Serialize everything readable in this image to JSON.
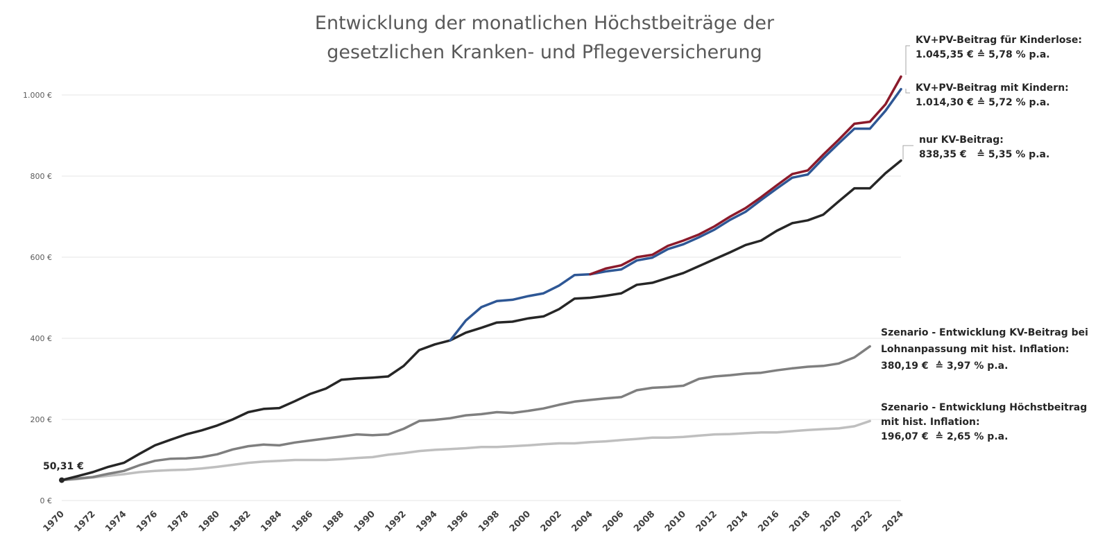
{
  "chart_data": {
    "type": "line",
    "title": "Entwicklung der monatlichen Höchstbeiträge der gesetzlichen Kranken- und Pflegeversicherung",
    "title_lines": [
      "Entwicklung der monatlichen Höchstbeiträge der",
      "gesetzlichen Kranken- und Pflegeversicherung"
    ],
    "xlabel": "",
    "ylabel": "",
    "ylim": [
      0,
      1000
    ],
    "yticks": [
      0,
      200,
      400,
      600,
      800,
      1000
    ],
    "ytick_labels": [
      "0 €",
      "200 €",
      "400 €",
      "600 €",
      "800 €",
      "1.000 €"
    ],
    "x_range": [
      1970,
      2024
    ],
    "xticks": [
      1970,
      1972,
      1974,
      1976,
      1978,
      1980,
      1982,
      1984,
      1986,
      1988,
      1990,
      1992,
      1994,
      1996,
      1998,
      2000,
      2002,
      2004,
      2006,
      2008,
      2010,
      2012,
      2014,
      2016,
      2018,
      2020,
      2022,
      2024
    ],
    "xtick_labels": [
      "1970",
      "1972",
      "1974",
      "1976",
      "1978",
      "1980",
      "1982",
      "1984",
      "1986",
      "1988",
      "1990",
      "1992",
      "1994",
      "1996",
      "1998",
      "2000",
      "2002",
      "2004",
      "2006",
      "2008",
      "2010",
      "2012",
      "2014",
      "2016",
      "2018",
      "2020",
      "2022",
      "2024"
    ],
    "grid": true,
    "start_label": "50,31 €",
    "series": [
      {
        "name": "KV+PV-Beitrag für Kinderlose",
        "color": "#8b1a2b",
        "annotation": [
          "KV+PV-Beitrag für Kinderlose:",
          "1.045,35 € ≙ 5,78 % p.a."
        ],
        "x": [
          2004,
          2005,
          2006,
          2007,
          2008,
          2009,
          2010,
          2011,
          2012,
          2013,
          2014,
          2015,
          2016,
          2017,
          2018,
          2019,
          2020,
          2021,
          2022,
          2023,
          2024
        ],
        "values": [
          558,
          572,
          580,
          600,
          606,
          628,
          641,
          656,
          676,
          700,
          721,
          748,
          777,
          805,
          814,
          853,
          890,
          929,
          934,
          977,
          1045.35
        ]
      },
      {
        "name": "KV+PV-Beitrag mit Kindern",
        "color": "#2e5795",
        "annotation": [
          "KV+PV-Beitrag mit Kindern:",
          "1.014,30 € ≙ 5,72 % p.a."
        ],
        "x": [
          1995,
          1996,
          1997,
          1998,
          1999,
          2000,
          2001,
          2002,
          2003,
          2004,
          2005,
          2006,
          2007,
          2008,
          2009,
          2010,
          2011,
          2012,
          2013,
          2014,
          2015,
          2016,
          2017,
          2018,
          2019,
          2020,
          2021,
          2022,
          2023,
          2024
        ],
        "values": [
          395,
          444,
          477,
          492,
          495,
          504,
          511,
          530,
          556,
          558,
          565,
          570,
          592,
          599,
          620,
          632,
          649,
          668,
          692,
          712,
          741,
          769,
          796,
          804,
          844,
          881,
          917,
          917,
          961,
          1014.3
        ]
      },
      {
        "name": "nur KV-Beitrag",
        "color": "#262626",
        "annotation": [
          "nur KV-Beitrag:",
          "838,35 €   ≙ 5,35 % p.a."
        ],
        "x": [
          1970,
          1971,
          1972,
          1973,
          1974,
          1975,
          1976,
          1977,
          1978,
          1979,
          1980,
          1981,
          1982,
          1983,
          1984,
          1985,
          1986,
          1987,
          1988,
          1989,
          1990,
          1991,
          1992,
          1993,
          1994,
          1995,
          1996,
          1997,
          1998,
          1999,
          2000,
          2001,
          2002,
          2003,
          2004,
          2005,
          2006,
          2007,
          2008,
          2009,
          2010,
          2011,
          2012,
          2013,
          2014,
          2015,
          2016,
          2017,
          2018,
          2019,
          2020,
          2021,
          2022,
          2023,
          2024
        ],
        "values": [
          50.31,
          60,
          70,
          83,
          93,
          115,
          136,
          150,
          163,
          173,
          185,
          200,
          218,
          226,
          228,
          245,
          263,
          276,
          298,
          301,
          303,
          306,
          332,
          371,
          385,
          395,
          414,
          426,
          439,
          441,
          449,
          454,
          472,
          498,
          500,
          505,
          511,
          532,
          537,
          549,
          561,
          578,
          595,
          612,
          630,
          641,
          665,
          684,
          691,
          705,
          738,
          770,
          770,
          807,
          838.35
        ]
      },
      {
        "name": "Szenario - Entwicklung KV-Beitrag bei Lohnanpassung mit hist. Inflation",
        "color": "#7f7f7f",
        "annotation": [
          "Szenario - Entwicklung KV-Beitrag bei",
          "Lohnanpassung mit hist. Inflation:",
          "380,19 €  ≙ 3,97 % p.a."
        ],
        "x": [
          1970,
          1971,
          1972,
          1973,
          1974,
          1975,
          1976,
          1977,
          1978,
          1979,
          1980,
          1981,
          1982,
          1983,
          1984,
          1985,
          1986,
          1987,
          1988,
          1989,
          1990,
          1991,
          1992,
          1993,
          1994,
          1995,
          1996,
          1997,
          1998,
          1999,
          2000,
          2001,
          2002,
          2003,
          2004,
          2005,
          2006,
          2007,
          2008,
          2009,
          2010,
          2011,
          2012,
          2013,
          2014,
          2015,
          2016,
          2017,
          2018,
          2019,
          2020,
          2021,
          2022,
          2023,
          2024
        ],
        "values": [
          50.31,
          54,
          58,
          66,
          73,
          87,
          98,
          103,
          104,
          107,
          114,
          126,
          134,
          138,
          136,
          143,
          148,
          153,
          158,
          163,
          161,
          163,
          177,
          196,
          199,
          203,
          210,
          213,
          218,
          216,
          221,
          227,
          236,
          244,
          248,
          252,
          255,
          272,
          278,
          280,
          283,
          300,
          306,
          309,
          313,
          315,
          321,
          326,
          330,
          332,
          338,
          353,
          380.19,
          null,
          null
        ]
      },
      {
        "name": "Szenario - Entwicklung Höchstbeitrag mit hist. Inflation",
        "color": "#bfbfbf",
        "annotation": [
          "Szenario - Entwicklung Höchstbeitrag",
          "mit hist. Inflation:",
          "196,07 €  ≙ 2,65 % p.a."
        ],
        "x": [
          1970,
          1971,
          1972,
          1973,
          1974,
          1975,
          1976,
          1977,
          1978,
          1979,
          1980,
          1981,
          1982,
          1983,
          1984,
          1985,
          1986,
          1987,
          1988,
          1989,
          1990,
          1991,
          1992,
          1993,
          1994,
          1995,
          1996,
          1997,
          1998,
          1999,
          2000,
          2001,
          2002,
          2003,
          2004,
          2005,
          2006,
          2007,
          2008,
          2009,
          2010,
          2011,
          2012,
          2013,
          2014,
          2015,
          2016,
          2017,
          2018,
          2019,
          2020,
          2021,
          2022,
          2023,
          2024
        ],
        "values": [
          50.31,
          53,
          57,
          61,
          65,
          70,
          73,
          75,
          76,
          79,
          83,
          88,
          93,
          96,
          98,
          100,
          100,
          100,
          102,
          105,
          107,
          113,
          117,
          122,
          125,
          127,
          129,
          132,
          132,
          134,
          136,
          139,
          141,
          141,
          144,
          146,
          149,
          152,
          155,
          155,
          157,
          160,
          163,
          164,
          166,
          168,
          168,
          171,
          174,
          176,
          178,
          183,
          196.07,
          null,
          null
        ]
      }
    ]
  }
}
